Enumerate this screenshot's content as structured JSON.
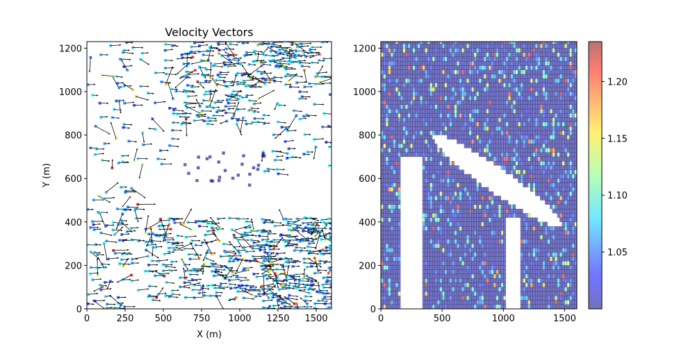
{
  "chart_data": [
    {
      "type": "scatter",
      "subtype": "quiver",
      "title": "Velocity Vectors",
      "xlabel": "X (m)",
      "ylabel": "Y (m)",
      "xlim": [
        0,
        1600
      ],
      "ylim": [
        0,
        1230
      ],
      "xticks": [
        0,
        250,
        500,
        750,
        1000,
        1250,
        1500
      ],
      "yticks": [
        0,
        200,
        400,
        600,
        800,
        1000,
        1200
      ],
      "colormap": "jet",
      "colormap_alpha": 0.5,
      "grid": false,
      "dense_regions": [
        {
          "x": [
            1150,
            1600
          ],
          "y": [
            0,
            420
          ],
          "density": 0.45
        },
        {
          "x": [
            620,
            1560
          ],
          "y": [
            1020,
            1225
          ],
          "density": 0.38
        },
        {
          "x": [
            560,
            1150
          ],
          "y": [
            850,
            1010
          ],
          "density": 0.3
        },
        {
          "x": [
            380,
            1150
          ],
          "y": [
            40,
            420
          ],
          "density": 0.3
        },
        {
          "x": [
            0,
            340
          ],
          "y": [
            0,
            560
          ],
          "density": 0.15
        },
        {
          "x": [
            0,
            560
          ],
          "y": [
            640,
            1225
          ],
          "density": 0.1
        },
        {
          "x": [
            1150,
            1600
          ],
          "y": [
            620,
            1000
          ],
          "density": 0.1
        }
      ],
      "low_value_cluster": {
        "x": [
          640,
          1250
        ],
        "y": [
          560,
          720
        ],
        "value": 1.0
      },
      "value_range": [
        1.0,
        1.23
      ]
    },
    {
      "type": "heatmap",
      "title": "",
      "xlabel": "",
      "ylabel": "",
      "xlim": [
        0,
        1600
      ],
      "ylim": [
        0,
        1230
      ],
      "xticks": [
        0,
        500,
        1000,
        1500
      ],
      "yticks": [
        0,
        200,
        400,
        600,
        800,
        1000,
        1200
      ],
      "cell_size": 20,
      "colormap": "jet",
      "colormap_alpha": 0.5,
      "colorbar": {
        "vmin": 1.0,
        "vmax": 1.235,
        "ticks": [
          1.05,
          1.1,
          1.15,
          1.2
        ],
        "tick_labels": [
          "1.05",
          "1.10",
          "1.15",
          "1.20"
        ]
      },
      "masked_regions": [
        {
          "shape": "tilted-ellipse",
          "center": [
            950,
            590
          ],
          "semi_axes": [
            560,
            65
          ],
          "angle_deg": -21
        },
        {
          "shape": "leg",
          "x": [
            160,
            330
          ],
          "y_top": 700,
          "y_bottom": 0
        },
        {
          "shape": "leg",
          "x": [
            1030,
            1130
          ],
          "y_top": 420,
          "y_bottom": 0
        }
      ],
      "value_range": [
        1.0,
        1.23
      ]
    }
  ]
}
